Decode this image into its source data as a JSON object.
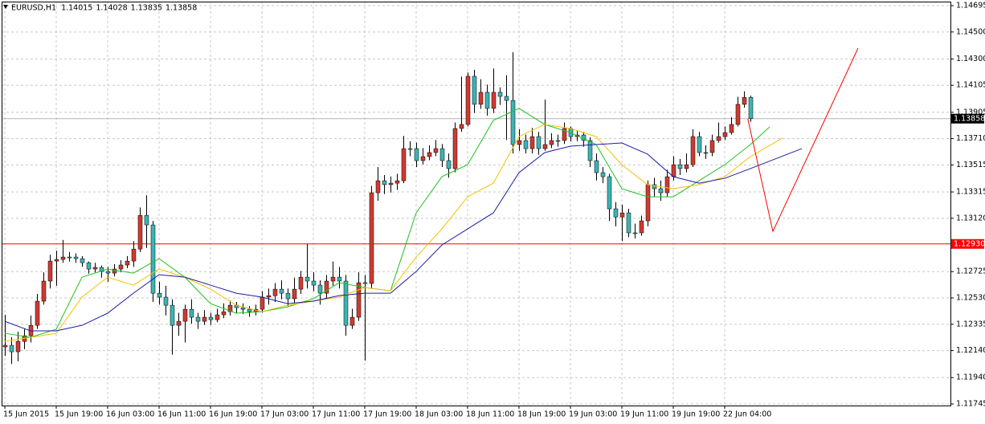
{
  "chart_data": {
    "type": "candlestick",
    "symbol": "EURUSD,H1",
    "ylim": [
      1.11733,
      1.14725
    ],
    "yticks": [
      {
        "value": 1.14695,
        "label": "1.14695"
      },
      {
        "value": 1.145,
        "label": "1.14500"
      },
      {
        "value": 1.143,
        "label": "1.14300"
      },
      {
        "value": 1.14105,
        "label": "1.14105"
      },
      {
        "value": 1.13905,
        "label": "1.13905"
      },
      {
        "value": 1.1371,
        "label": "1.13710"
      },
      {
        "value": 1.13515,
        "label": "1.13515"
      },
      {
        "value": 1.13315,
        "label": "1.13315"
      },
      {
        "value": 1.1312,
        "label": "1.13120"
      },
      {
        "value": 1.12725,
        "label": "1.12725"
      },
      {
        "value": 1.1253,
        "label": "1.12530"
      },
      {
        "value": 1.12335,
        "label": "1.12335"
      },
      {
        "value": 1.1214,
        "label": "1.12140"
      },
      {
        "value": 1.1194,
        "label": "1.11940"
      },
      {
        "value": 1.11745,
        "label": "1.11745"
      }
    ],
    "grid": true,
    "up_color": "#d03a30",
    "down_color": "#3cb4b4",
    "wick_color": "#000000",
    "categories": [
      "15 Jun 2015",
      null,
      null,
      null,
      null,
      null,
      null,
      null,
      "15 Jun 19:00",
      null,
      null,
      null,
      null,
      null,
      null,
      null,
      "16 Jun 03:00",
      null,
      null,
      null,
      null,
      null,
      null,
      null,
      "16 Jun 11:00",
      null,
      null,
      null,
      null,
      null,
      null,
      null,
      "16 Jun 19:00",
      null,
      null,
      null,
      null,
      null,
      null,
      null,
      "17 Jun 03:00",
      null,
      null,
      null,
      null,
      null,
      null,
      null,
      "17 Jun 11:00",
      null,
      null,
      null,
      null,
      null,
      null,
      null,
      "17 Jun 19:00",
      null,
      null,
      null,
      null,
      null,
      null,
      null,
      "18 Jun 03:00",
      null,
      null,
      null,
      null,
      null,
      null,
      null,
      "18 Jun 11:00",
      null,
      null,
      null,
      null,
      null,
      null,
      null,
      "18 Jun 19:00",
      null,
      null,
      null,
      null,
      null,
      null,
      null,
      "19 Jun 03:00",
      null,
      null,
      null,
      null,
      null,
      null,
      null,
      "19 Jun 11:00",
      null,
      null,
      null,
      null,
      null,
      null,
      null,
      "19 Jun 19:00",
      null,
      null,
      null,
      null,
      null,
      null,
      null,
      "22 Jun 04:00",
      null,
      null,
      null,
      null
    ],
    "open": [
      1.12167,
      1.12179,
      1.12131,
      1.12208,
      1.1225,
      1.12327,
      1.12506,
      1.12655,
      1.12803,
      1.12815,
      1.12833,
      1.12833,
      1.12821,
      1.12791,
      1.12744,
      1.12756,
      1.12726,
      1.12714,
      1.12744,
      1.12774,
      1.12803,
      1.12892,
      1.13142,
      1.13071,
      1.12565,
      1.12536,
      1.12476,
      1.12327,
      1.12357,
      1.12446,
      1.12387,
      1.12357,
      1.12387,
      1.12369,
      1.12405,
      1.12428,
      1.12476,
      1.12458,
      1.12446,
      1.12428,
      1.12446,
      1.12536,
      1.12547,
      1.12595,
      1.12565,
      1.12524,
      1.12595,
      1.12684,
      1.12655,
      1.12625,
      1.12565,
      1.12655,
      1.12684,
      1.12655,
      1.12327,
      1.12387,
      1.12643,
      1.12637,
      1.13309,
      1.13398,
      1.13369,
      1.1338,
      1.13398,
      1.13636,
      1.13636,
      1.13547,
      1.13577,
      1.13607,
      1.13636,
      1.13547,
      1.13488,
      1.13785,
      1.13815,
      1.14172,
      1.13964,
      1.14053,
      1.13934,
      1.14053,
      1.14023,
      1.13993,
      1.13666,
      1.13696,
      1.13636,
      1.13725,
      1.13636,
      1.13666,
      1.13696,
      1.13696,
      1.13785,
      1.13725,
      1.13737,
      1.13696,
      1.13547,
      1.13458,
      1.13428,
      1.1319,
      1.1313,
      1.1316,
      1.13012,
      1.13012,
      1.13101,
      1.13369,
      1.13339,
      1.13309,
      1.13428,
      1.13517,
      1.13488,
      1.13517,
      1.13725,
      1.13607,
      1.13607,
      1.13696,
      1.13725,
      1.13755,
      1.13815,
      1.13964,
      1.14015
    ],
    "high": [
      1.12405,
      1.1224,
      1.1228,
      1.123,
      1.124,
      1.1256,
      1.1272,
      1.1285,
      1.1288,
      1.1296,
      1.1287,
      1.1286,
      1.1284,
      1.128,
      1.1279,
      1.1277,
      1.1276,
      1.1278,
      1.1281,
      1.1284,
      1.1295,
      1.132,
      1.13291,
      1.131,
      1.1265,
      1.1262,
      1.1252,
      1.1242,
      1.1248,
      1.1252,
      1.1242,
      1.1244,
      1.1242,
      1.1245,
      1.1249,
      1.1251,
      1.125,
      1.1249,
      1.1247,
      1.1248,
      1.1258,
      1.126,
      1.1264,
      1.1266,
      1.126,
      1.1268,
      1.1273,
      1.1293,
      1.1272,
      1.1266,
      1.127,
      1.128,
      1.1276,
      1.127,
      1.1245,
      1.1272,
      1.127,
      1.1336,
      1.135,
      1.1344,
      1.1343,
      1.1345,
      1.1373,
      1.1369,
      1.1368,
      1.1364,
      1.1366,
      1.137,
      1.1367,
      1.136,
      1.1383,
      1.1417,
      1.142,
      1.1422,
      1.1415,
      1.1411,
      1.1423,
      1.1409,
      1.1418,
      1.1435,
      1.1378,
      1.1374,
      1.1379,
      1.1376,
      1.14,
      1.1375,
      1.1374,
      1.1383,
      1.138,
      1.1377,
      1.1376,
      1.1372,
      1.136,
      1.135,
      1.1345,
      1.1324,
      1.1322,
      1.1319,
      1.1308,
      1.1314,
      1.134,
      1.1342,
      1.134,
      1.1348,
      1.1358,
      1.1356,
      1.136,
      1.1378,
      1.1376,
      1.1366,
      1.1374,
      1.1383,
      1.138,
      1.1387,
      1.1402,
      1.1406,
      1.14028
    ],
    "low": [
      1.121,
      1.1204,
      1.1206,
      1.1215,
      1.122,
      1.123,
      1.1248,
      1.126,
      1.1262,
      1.1279,
      1.128,
      1.1279,
      1.1276,
      1.1271,
      1.1272,
      1.1268,
      1.1265,
      1.1269,
      1.1272,
      1.1275,
      1.1276,
      1.1287,
      1.129,
      1.125,
      1.1248,
      1.124,
      1.1211,
      1.1225,
      1.122,
      1.1234,
      1.123,
      1.1233,
      1.1233,
      1.1235,
      1.1238,
      1.124,
      1.1242,
      1.1241,
      1.1239,
      1.124,
      1.1242,
      1.1248,
      1.125,
      1.1252,
      1.1247,
      1.1249,
      1.1256,
      1.126,
      1.1258,
      1.1248,
      1.1252,
      1.1262,
      1.126,
      1.1225,
      1.123,
      1.1236,
      1.12066,
      1.126,
      1.1325,
      1.133,
      1.1331,
      1.1333,
      1.1338,
      1.1358,
      1.135,
      1.1352,
      1.1355,
      1.1358,
      1.135,
      1.1342,
      1.1346,
      1.1376,
      1.138,
      1.139,
      1.1393,
      1.1388,
      1.139,
      1.1396,
      1.137,
      1.136,
      1.1362,
      1.136,
      1.136,
      1.1359,
      1.1362,
      1.1364,
      1.1365,
      1.1367,
      1.1369,
      1.1369,
      1.1365,
      1.135,
      1.134,
      1.1338,
      1.131,
      1.1306,
      1.12952,
      1.1298,
      1.1297,
      1.1299,
      1.1306,
      1.1328,
      1.1325,
      1.1328,
      1.134,
      1.1344,
      1.1346,
      1.135,
      1.1358,
      1.1356,
      1.1358,
      1.1368,
      1.137,
      1.1374,
      1.138,
      1.1394,
      1.13835
    ],
    "close": [
      1.12179,
      1.12131,
      1.12208,
      1.1225,
      1.12327,
      1.12506,
      1.12655,
      1.12803,
      1.12815,
      1.12833,
      1.12833,
      1.12821,
      1.12791,
      1.12744,
      1.12756,
      1.12726,
      1.12714,
      1.12744,
      1.12774,
      1.12803,
      1.12892,
      1.13142,
      1.13071,
      1.12565,
      1.12536,
      1.12476,
      1.12327,
      1.12357,
      1.12446,
      1.12387,
      1.12357,
      1.12387,
      1.12369,
      1.12405,
      1.12428,
      1.12476,
      1.12458,
      1.12446,
      1.12428,
      1.12446,
      1.12536,
      1.12547,
      1.12595,
      1.12565,
      1.12524,
      1.12595,
      1.12684,
      1.12655,
      1.12625,
      1.12565,
      1.12655,
      1.12684,
      1.12655,
      1.12327,
      1.12387,
      1.12643,
      1.12637,
      1.13309,
      1.13398,
      1.13369,
      1.1338,
      1.13398,
      1.13636,
      1.13636,
      1.13547,
      1.13577,
      1.13607,
      1.13636,
      1.13547,
      1.13488,
      1.13785,
      1.13815,
      1.14172,
      1.13964,
      1.14053,
      1.13934,
      1.14053,
      1.14023,
      1.13993,
      1.13666,
      1.13696,
      1.13636,
      1.13725,
      1.13636,
      1.13666,
      1.13696,
      1.13696,
      1.13785,
      1.13725,
      1.13737,
      1.13696,
      1.13547,
      1.13458,
      1.13428,
      1.1319,
      1.1313,
      1.1316,
      1.13012,
      1.13012,
      1.13101,
      1.13369,
      1.13339,
      1.13309,
      1.13428,
      1.13517,
      1.13488,
      1.13517,
      1.13725,
      1.13607,
      1.13607,
      1.13696,
      1.13725,
      1.13755,
      1.13815,
      1.13964,
      1.14015,
      1.13858
    ],
    "moving_averages": [
      {
        "color": "#22c022",
        "x": [
          0,
          4,
          8,
          12,
          16,
          20,
          24,
          28,
          32,
          36,
          40,
          44,
          48,
          52,
          56,
          60,
          64,
          68,
          72,
          76,
          80,
          84,
          88,
          92,
          96,
          100,
          104,
          108,
          112,
          116,
          119
        ],
        "values": [
          1.12268,
          1.12238,
          1.12298,
          1.12684,
          1.12744,
          1.12714,
          1.12821,
          1.12684,
          1.12488,
          1.12417,
          1.12428,
          1.12464,
          1.12524,
          1.12643,
          1.12607,
          1.12583,
          1.1316,
          1.13428,
          1.13517,
          1.13845,
          1.13934,
          1.13815,
          1.13755,
          1.13666,
          1.13339,
          1.13279,
          1.13279,
          1.13398,
          1.13517,
          1.13666,
          1.13797
        ]
      },
      {
        "color": "#f5c000",
        "x": [
          0,
          4,
          8,
          12,
          16,
          20,
          24,
          28,
          32,
          36,
          40,
          44,
          48,
          52,
          56,
          60,
          64,
          68,
          72,
          76,
          80,
          84,
          88,
          92,
          96,
          100,
          104,
          108,
          112,
          116,
          121
        ],
        "values": [
          1.12208,
          1.12238,
          1.12268,
          1.12536,
          1.12684,
          1.12625,
          1.12744,
          1.12684,
          1.12595,
          1.12476,
          1.12428,
          1.12476,
          1.12506,
          1.12536,
          1.12607,
          1.12583,
          1.12833,
          1.13041,
          1.13279,
          1.1338,
          1.13725,
          1.13815,
          1.13785,
          1.13725,
          1.13517,
          1.13369,
          1.13339,
          1.13369,
          1.13428,
          1.13577,
          1.13714
        ]
      },
      {
        "color": "#1c1ca8",
        "x": [
          0,
          4,
          8,
          12,
          16,
          20,
          24,
          28,
          32,
          36,
          40,
          44,
          48,
          52,
          56,
          60,
          64,
          68,
          72,
          76,
          80,
          84,
          88,
          92,
          96,
          100,
          104,
          108,
          112,
          116,
          124
        ],
        "values": [
          1.12357,
          1.12286,
          1.12286,
          1.12327,
          1.12417,
          1.12565,
          1.12702,
          1.12684,
          1.12625,
          1.12565,
          1.12536,
          1.12488,
          1.12506,
          1.12547,
          1.12565,
          1.12565,
          1.12726,
          1.12922,
          1.13041,
          1.1316,
          1.13458,
          1.13607,
          1.13654,
          1.13666,
          1.13678,
          1.13595,
          1.13428,
          1.1338,
          1.13416,
          1.13488,
          1.13636
        ]
      }
    ],
    "forecast_line": {
      "color": "#ff0000",
      "x": [
        115.6,
        119.5,
        132.75
      ],
      "values": [
        1.13856,
        1.13023,
        1.1438
      ]
    },
    "level_line": {
      "value": 1.1293,
      "label": "1.12930",
      "color": "#ff0000"
    },
    "price_line_color": "#b4b4b4"
  }
}
